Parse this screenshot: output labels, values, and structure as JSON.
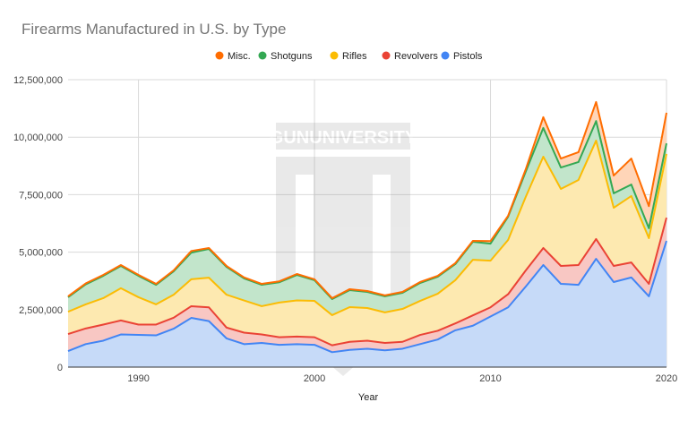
{
  "chart_data": {
    "type": "area",
    "stacked": true,
    "title": "Firearms Manufactured in U.S. by Type",
    "xlabel": "Year",
    "ylabel": "",
    "xlim": [
      1986,
      2020
    ],
    "ylim": [
      0,
      12500000
    ],
    "grid": true,
    "legend": "top",
    "x_ticks": [
      "1990",
      "2000",
      "2010",
      "2020"
    ],
    "y_ticks": [
      "0",
      "2,500,000",
      "5,000,000",
      "7,500,000",
      "10,000,000",
      "12,500,000"
    ],
    "x": [
      1986,
      1987,
      1988,
      1989,
      1990,
      1991,
      1992,
      1993,
      1994,
      1995,
      1996,
      1997,
      1998,
      1999,
      2000,
      2001,
      2002,
      2003,
      2004,
      2005,
      2006,
      2007,
      2008,
      2009,
      2010,
      2011,
      2012,
      2013,
      2014,
      2015,
      2016,
      2017,
      2018,
      2019,
      2020
    ],
    "series": [
      {
        "name": "Pistols",
        "color": "#4285f4",
        "fill": "#c6daf8",
        "values": [
          700000,
          1000000,
          1150000,
          1420000,
          1400000,
          1380000,
          1670000,
          2140000,
          2000000,
          1250000,
          1000000,
          1050000,
          970000,
          1000000,
          970000,
          650000,
          750000,
          800000,
          730000,
          800000,
          1000000,
          1200000,
          1600000,
          1800000,
          2200000,
          2600000,
          3500000,
          4440000,
          3620000,
          3580000,
          4710000,
          3700000,
          3900000,
          3080000,
          5490000
        ]
      },
      {
        "name": "Revolvers",
        "color": "#ea4335",
        "fill": "#f8c7c3",
        "values": [
          740000,
          680000,
          700000,
          610000,
          450000,
          470000,
          480000,
          510000,
          600000,
          470000,
          500000,
          370000,
          330000,
          330000,
          330000,
          300000,
          350000,
          350000,
          320000,
          300000,
          400000,
          380000,
          300000,
          450000,
          400000,
          570000,
          700000,
          740000,
          780000,
          860000,
          860000,
          700000,
          650000,
          540000,
          1010000
        ]
      },
      {
        "name": "Rifles",
        "color": "#fbbc04",
        "fill": "#fde9b0",
        "values": [
          970000,
          1050000,
          1150000,
          1400000,
          1190000,
          880000,
          1000000,
          1170000,
          1290000,
          1430000,
          1400000,
          1230000,
          1510000,
          1570000,
          1580000,
          1310000,
          1510000,
          1420000,
          1330000,
          1430000,
          1480000,
          1610000,
          1880000,
          2420000,
          2030000,
          2360000,
          3200000,
          3970000,
          3350000,
          3700000,
          4280000,
          2530000,
          2890000,
          1990000,
          2770000
        ]
      },
      {
        "name": "Shotguns",
        "color": "#34a853",
        "fill": "#c2e5cb",
        "values": [
          630000,
          870000,
          970000,
          970000,
          930000,
          850000,
          1020000,
          1160000,
          1250000,
          1210000,
          960000,
          930000,
          880000,
          1110000,
          900000,
          700000,
          740000,
          700000,
          700000,
          700000,
          780000,
          740000,
          700000,
          780000,
          740000,
          1010000,
          1100000,
          1250000,
          930000,
          780000,
          850000,
          630000,
          500000,
          430000,
          460000
        ]
      },
      {
        "name": "Misc.",
        "color": "#ff6d01",
        "fill": "#ffd5b8",
        "values": [
          40000,
          40000,
          40000,
          40000,
          40000,
          40000,
          40000,
          70000,
          40000,
          40000,
          40000,
          40000,
          40000,
          40000,
          40000,
          40000,
          40000,
          40000,
          40000,
          40000,
          40000,
          40000,
          40000,
          40000,
          110000,
          40000,
          100000,
          470000,
          390000,
          430000,
          830000,
          770000,
          1130000,
          960000,
          1330000
        ]
      }
    ],
    "legend_order": [
      "Misc.",
      "Shotguns",
      "Rifles",
      "Revolvers",
      "Pistols"
    ]
  },
  "watermark": {
    "text": "GUNUNIVERSITY"
  }
}
